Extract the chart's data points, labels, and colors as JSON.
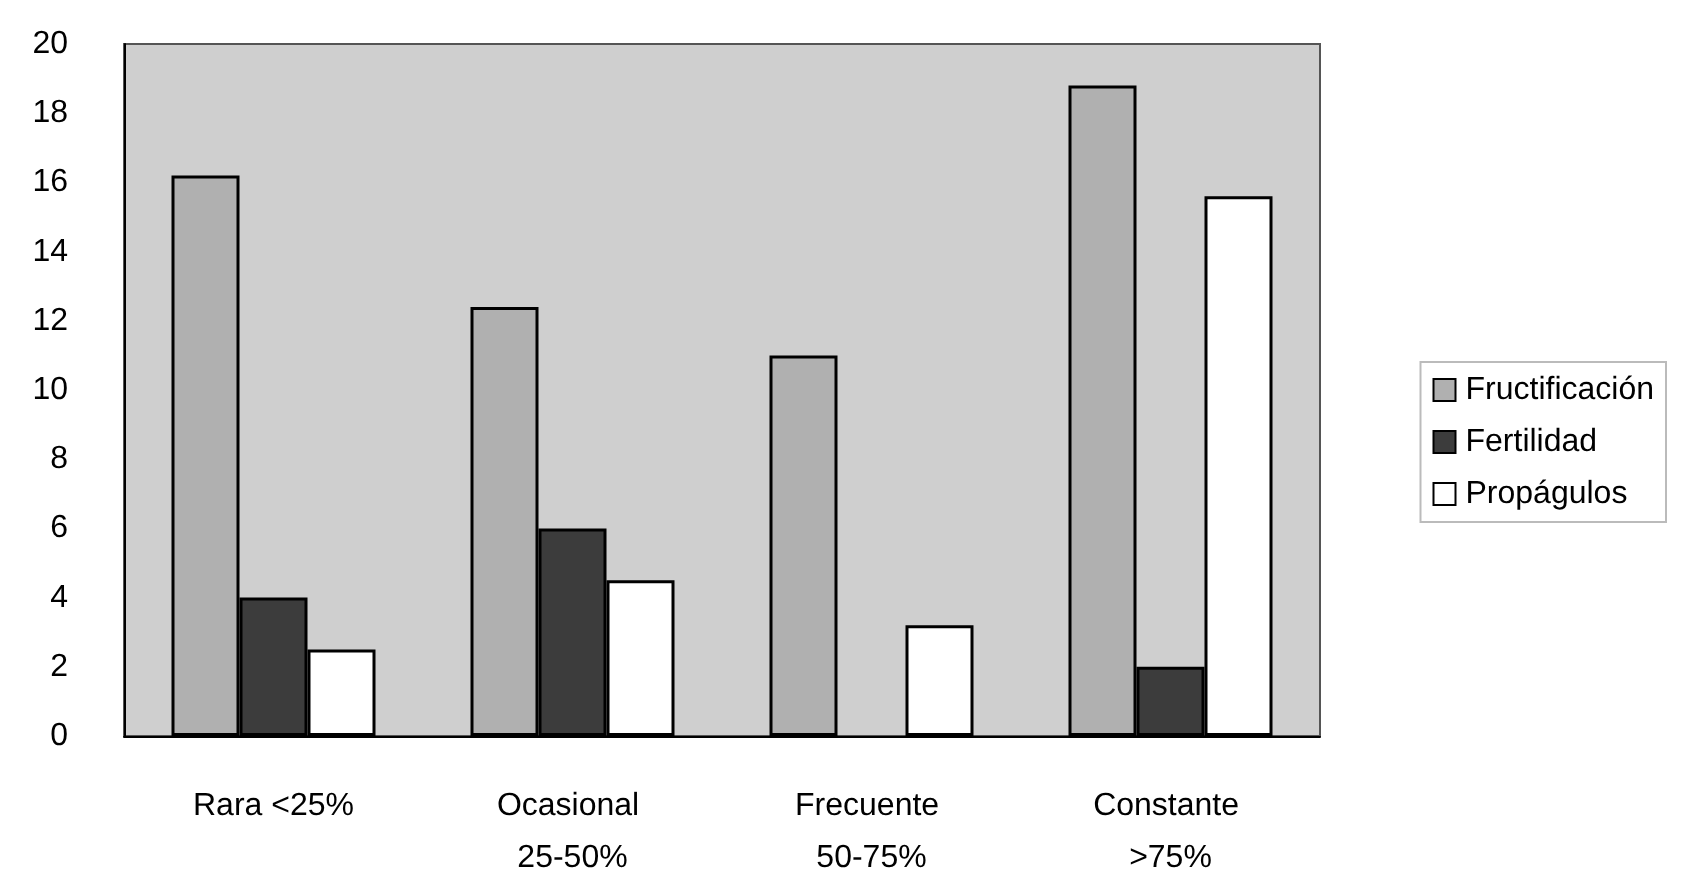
{
  "chart_data": {
    "type": "bar",
    "categories": [
      "Rara <25%",
      "Ocasional 25-50%",
      "Frecuente 50-75%",
      "Constante >75%"
    ],
    "series": [
      {
        "name": "Fructificación",
        "color": "#b0b0b0",
        "values": [
          16.2,
          12.4,
          11.0,
          18.8
        ]
      },
      {
        "name": "Fertilidad",
        "color": "#3c3c3c",
        "values": [
          4.0,
          6.0,
          0,
          2.0
        ]
      },
      {
        "name": "Propágulos",
        "color": "#ffffff",
        "values": [
          2.5,
          4.5,
          3.2,
          15.6
        ]
      }
    ],
    "ylim": [
      0,
      20
    ],
    "yticks": [
      0,
      2,
      4,
      6,
      8,
      10,
      12,
      14,
      16,
      18,
      20
    ],
    "grid": false,
    "legend": "right"
  }
}
